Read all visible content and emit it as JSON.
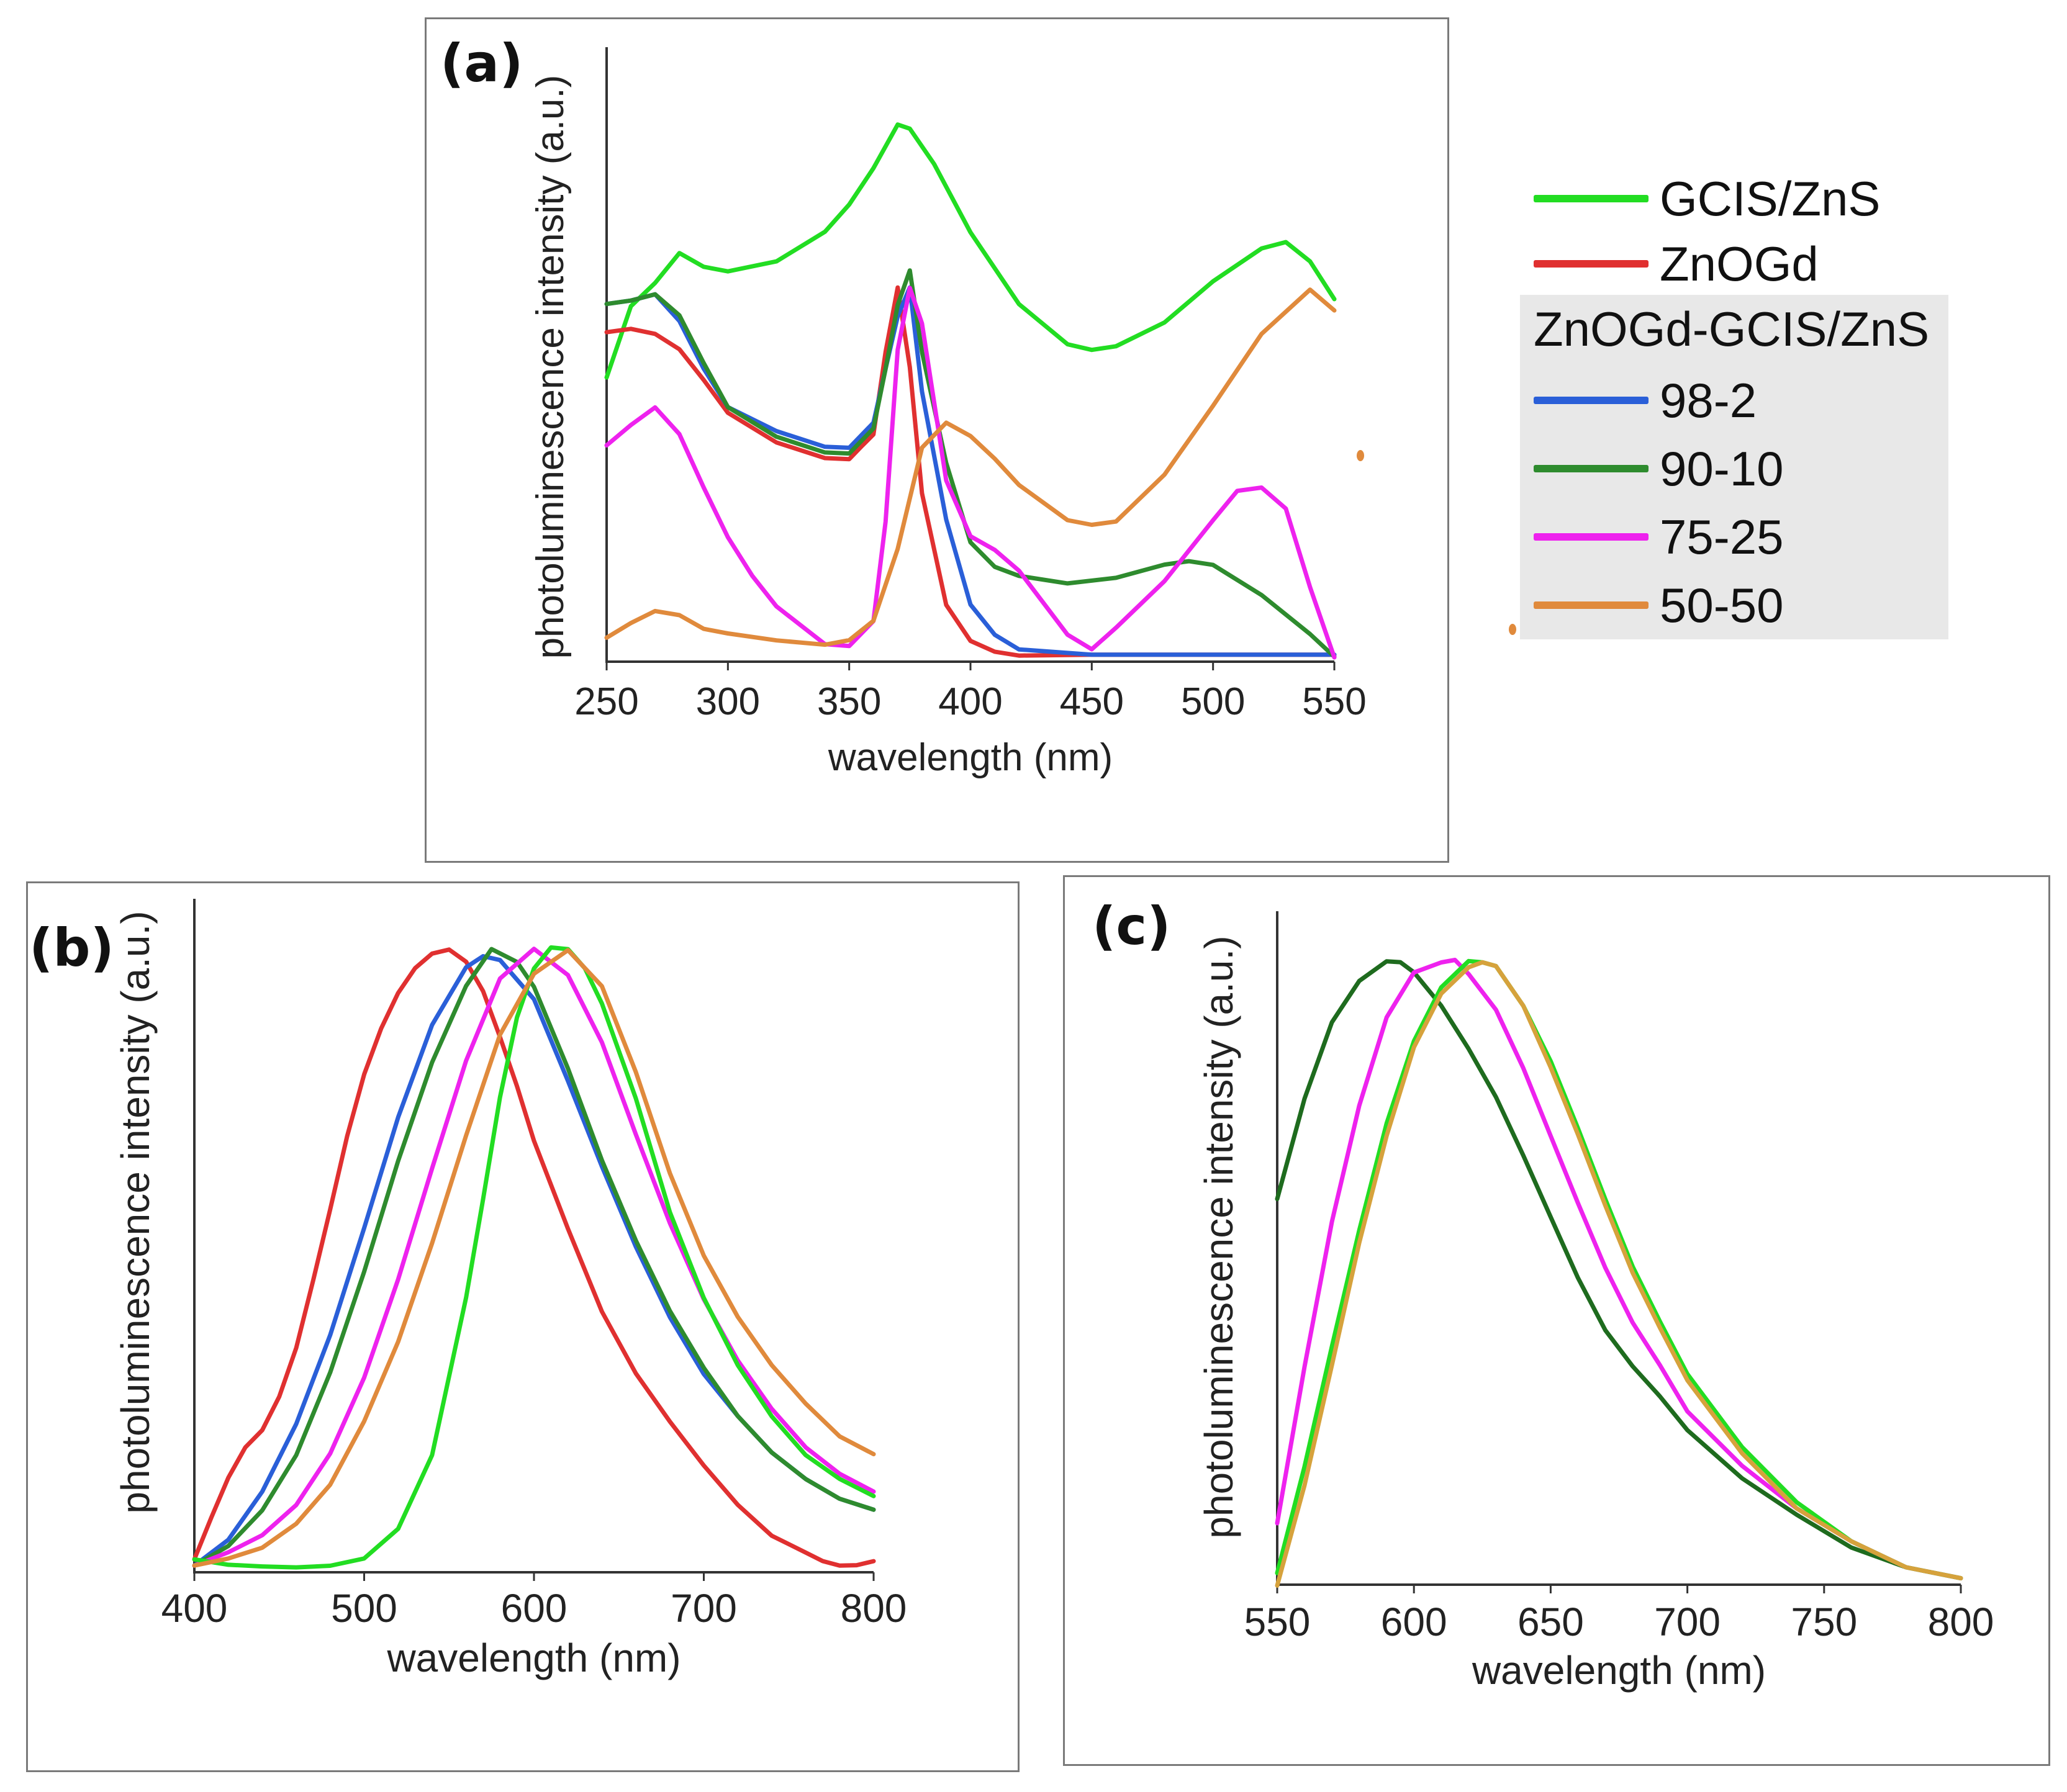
{
  "colors": {
    "gcis_zns": "#22dd22",
    "znogd": "#e03030",
    "s98_2": "#2a5fd8",
    "s90_10": "#2e8b2e",
    "s75_25": "#ee22ee",
    "s50_50": "#e08a3c",
    "axis": "#333333"
  },
  "legend": {
    "items": [
      {
        "label": "GCIS/ZnS",
        "color": "#22dd22"
      },
      {
        "label": "ZnOGd",
        "color": "#e03030"
      }
    ],
    "group_title": "ZnOGd-GCIS/ZnS",
    "group_items": [
      {
        "label": "98-2",
        "color": "#2a5fd8"
      },
      {
        "label": "90-10",
        "color": "#2e8b2e"
      },
      {
        "label": "75-25",
        "color": "#ee22ee"
      },
      {
        "label": "50-50",
        "color": "#e08a3c"
      }
    ]
  },
  "chart_data": [
    {
      "panel_label": "(a)",
      "type": "line",
      "xlabel": "wavelength (nm)",
      "ylabel": "photoluminescence intensity  (a.u.)",
      "xlim": [
        250,
        550
      ],
      "ylim": [
        0,
        1
      ],
      "xticks": [
        250,
        300,
        350,
        400,
        450,
        500,
        550
      ],
      "series": [
        {
          "name": "GCIS/ZnS",
          "color": "#22dd22",
          "x": [
            250,
            260,
            270,
            280,
            290,
            300,
            320,
            340,
            350,
            360,
            370,
            375,
            385,
            400,
            420,
            440,
            450,
            460,
            480,
            500,
            520,
            530,
            540,
            550
          ],
          "y": [
            0.5,
            0.63,
            0.67,
            0.72,
            0.7,
            0.69,
            0.71,
            0.76,
            0.81,
            0.87,
            0.95,
            0.94,
            0.88,
            0.76,
            0.63,
            0.56,
            0.55,
            0.56,
            0.6,
            0.67,
            0.73,
            0.74,
            0.71,
            0.64
          ]
        },
        {
          "name": "ZnOGd",
          "color": "#e03030",
          "x": [
            250,
            260,
            270,
            280,
            290,
            300,
            320,
            340,
            350,
            355,
            360,
            365,
            370,
            375,
            380,
            390,
            400,
            410,
            420,
            450,
            500,
            550
          ],
          "y": [
            0.58,
            0.59,
            0.58,
            0.55,
            0.5,
            0.44,
            0.39,
            0.36,
            0.36,
            0.38,
            0.4,
            0.55,
            0.66,
            0.52,
            0.3,
            0.1,
            0.035,
            0.02,
            0.01,
            0.01,
            0.01,
            0.01
          ]
        },
        {
          "name": "98-2",
          "color": "#2a5fd8",
          "x": [
            250,
            260,
            270,
            280,
            290,
            300,
            320,
            340,
            350,
            360,
            365,
            370,
            375,
            380,
            390,
            400,
            410,
            420,
            450,
            500,
            550
          ],
          "y": [
            0.63,
            0.64,
            0.65,
            0.6,
            0.52,
            0.45,
            0.41,
            0.38,
            0.38,
            0.42,
            0.52,
            0.61,
            0.66,
            0.48,
            0.25,
            0.1,
            0.05,
            0.02,
            0.01,
            0.01,
            0.01
          ]
        },
        {
          "name": "90-10",
          "color": "#2e8b2e",
          "x": [
            250,
            260,
            270,
            280,
            290,
            300,
            320,
            340,
            350,
            360,
            365,
            370,
            375,
            380,
            390,
            400,
            410,
            420,
            440,
            460,
            480,
            490,
            500,
            520,
            540,
            550
          ],
          "y": [
            0.63,
            0.64,
            0.65,
            0.61,
            0.53,
            0.45,
            0.4,
            0.37,
            0.37,
            0.41,
            0.52,
            0.63,
            0.69,
            0.55,
            0.35,
            0.21,
            0.17,
            0.15,
            0.14,
            0.15,
            0.17,
            0.18,
            0.17,
            0.12,
            0.05,
            0.01
          ]
        },
        {
          "name": "75-25",
          "color": "#ee22ee",
          "x": [
            250,
            260,
            270,
            280,
            290,
            300,
            310,
            320,
            340,
            350,
            360,
            365,
            370,
            375,
            380,
            390,
            400,
            410,
            420,
            440,
            450,
            460,
            480,
            500,
            510,
            520,
            530,
            540,
            550
          ],
          "y": [
            0.38,
            0.42,
            0.45,
            0.4,
            0.31,
            0.22,
            0.15,
            0.1,
            0.03,
            0.03,
            0.07,
            0.25,
            0.55,
            0.66,
            0.6,
            0.32,
            0.22,
            0.2,
            0.16,
            0.05,
            0.02,
            0.06,
            0.14,
            0.25,
            0.3,
            0.31,
            0.27,
            0.13,
            0.01
          ]
        },
        {
          "name": "50-50",
          "color": "#e08a3c",
          "x": [
            250,
            260,
            270,
            280,
            290,
            300,
            320,
            340,
            350,
            360,
            370,
            380,
            390,
            400,
            410,
            420,
            440,
            450,
            460,
            480,
            500,
            520,
            540,
            550
          ],
          "y": [
            0.04,
            0.07,
            0.09,
            0.08,
            0.06,
            0.05,
            0.04,
            0.03,
            0.04,
            0.07,
            0.2,
            0.38,
            0.42,
            0.4,
            0.36,
            0.31,
            0.25,
            0.24,
            0.25,
            0.33,
            0.45,
            0.58,
            0.66,
            0.62
          ]
        }
      ]
    },
    {
      "panel_label": "(b)",
      "type": "line",
      "xlabel": "wavelength (nm)",
      "ylabel": "photoluminescence intensity  (a.u.)",
      "xlim": [
        400,
        800
      ],
      "ylim": [
        0,
        1
      ],
      "xticks": [
        400,
        500,
        600,
        700,
        800
      ],
      "series": [
        {
          "name": "ZnOGd",
          "color": "#e03030",
          "x": [
            400,
            410,
            420,
            430,
            440,
            450,
            460,
            470,
            480,
            490,
            500,
            510,
            520,
            530,
            540,
            550,
            560,
            570,
            580,
            590,
            600,
            620,
            640,
            660,
            680,
            700,
            720,
            740,
            760,
            770,
            780,
            790,
            800
          ],
          "y": [
            0.02,
            0.09,
            0.15,
            0.2,
            0.23,
            0.28,
            0.36,
            0.47,
            0.58,
            0.7,
            0.8,
            0.87,
            0.93,
            0.97,
            0.99,
            1.0,
            0.98,
            0.93,
            0.86,
            0.78,
            0.69,
            0.55,
            0.42,
            0.32,
            0.24,
            0.17,
            0.11,
            0.06,
            0.03,
            0.02,
            0.01,
            0.01,
            0.02
          ]
        },
        {
          "name": "98-2",
          "color": "#2a5fd8",
          "x": [
            400,
            420,
            440,
            460,
            480,
            500,
            520,
            540,
            560,
            570,
            580,
            600,
            620,
            640,
            660,
            680,
            700,
            720,
            740,
            760,
            780,
            800
          ],
          "y": [
            0.01,
            0.05,
            0.13,
            0.24,
            0.38,
            0.55,
            0.73,
            0.88,
            0.97,
            0.99,
            0.98,
            0.92,
            0.79,
            0.65,
            0.52,
            0.41,
            0.32,
            0.25,
            0.19,
            0.15,
            0.12,
            0.1
          ]
        },
        {
          "name": "90-10",
          "color": "#2e8b2e",
          "x": [
            400,
            420,
            440,
            460,
            480,
            500,
            520,
            540,
            560,
            575,
            590,
            600,
            620,
            640,
            660,
            680,
            700,
            720,
            740,
            760,
            780,
            800
          ],
          "y": [
            0.01,
            0.04,
            0.1,
            0.19,
            0.32,
            0.48,
            0.66,
            0.82,
            0.94,
            1.0,
            0.98,
            0.94,
            0.81,
            0.66,
            0.53,
            0.42,
            0.33,
            0.25,
            0.19,
            0.15,
            0.12,
            0.1
          ]
        },
        {
          "name": "75-25",
          "color": "#ee22ee",
          "x": [
            400,
            420,
            440,
            460,
            480,
            500,
            520,
            540,
            560,
            580,
            600,
            620,
            640,
            660,
            680,
            700,
            720,
            740,
            760,
            780,
            800
          ],
          "y": [
            0.01,
            0.03,
            0.06,
            0.11,
            0.19,
            0.31,
            0.47,
            0.65,
            0.82,
            0.95,
            1.0,
            0.96,
            0.85,
            0.7,
            0.56,
            0.44,
            0.34,
            0.26,
            0.2,
            0.16,
            0.13
          ]
        },
        {
          "name": "GCIS/ZnS",
          "color": "#22dd22",
          "x": [
            400,
            420,
            440,
            460,
            480,
            500,
            520,
            540,
            560,
            570,
            580,
            590,
            600,
            610,
            620,
            630,
            640,
            660,
            680,
            700,
            720,
            740,
            760,
            780,
            800
          ],
          "y": [
            0.02,
            0.01,
            0.01,
            0.01,
            0.01,
            0.02,
            0.07,
            0.19,
            0.44,
            0.6,
            0.76,
            0.89,
            0.97,
            1.0,
            1.0,
            0.97,
            0.91,
            0.76,
            0.58,
            0.44,
            0.33,
            0.25,
            0.19,
            0.15,
            0.12
          ]
        },
        {
          "name": "50-50",
          "color": "#e08a3c",
          "x": [
            400,
            420,
            440,
            460,
            480,
            500,
            520,
            540,
            560,
            580,
            600,
            620,
            640,
            660,
            680,
            700,
            720,
            740,
            760,
            780,
            800
          ],
          "y": [
            0.01,
            0.02,
            0.04,
            0.08,
            0.14,
            0.24,
            0.37,
            0.53,
            0.7,
            0.86,
            0.96,
            1.0,
            0.94,
            0.8,
            0.64,
            0.51,
            0.41,
            0.33,
            0.27,
            0.22,
            0.19
          ]
        }
      ]
    },
    {
      "panel_label": "(c)",
      "type": "line",
      "xlabel": "wavelength (nm)",
      "ylabel": "photoluminescence intensity  (a.u.)",
      "xlim": [
        550,
        800
      ],
      "ylim": [
        0,
        1
      ],
      "xticks": [
        550,
        600,
        650,
        700,
        750,
        800
      ],
      "series": [
        {
          "name": "90-10",
          "color": "#1e6b1e",
          "x": [
            550,
            560,
            570,
            580,
            590,
            595,
            600,
            610,
            620,
            630,
            640,
            650,
            660,
            670,
            680,
            690,
            700,
            720,
            740,
            760,
            780,
            800
          ],
          "y": [
            0.62,
            0.78,
            0.9,
            0.97,
            1.0,
            1.0,
            0.98,
            0.93,
            0.86,
            0.78,
            0.69,
            0.59,
            0.49,
            0.41,
            0.35,
            0.3,
            0.25,
            0.17,
            0.11,
            0.06,
            0.03,
            0.01
          ]
        },
        {
          "name": "75-25",
          "color": "#ee22ee",
          "x": [
            550,
            560,
            570,
            580,
            590,
            600,
            610,
            615,
            620,
            630,
            640,
            650,
            660,
            670,
            680,
            690,
            700,
            720,
            740,
            760,
            780,
            800
          ],
          "y": [
            0.1,
            0.35,
            0.58,
            0.77,
            0.91,
            0.98,
            1.0,
            1.0,
            0.98,
            0.92,
            0.83,
            0.72,
            0.61,
            0.51,
            0.42,
            0.35,
            0.28,
            0.19,
            0.12,
            0.07,
            0.03,
            0.01
          ]
        },
        {
          "name": "GCIS/ZnS",
          "color": "#22dd22",
          "x": [
            550,
            560,
            570,
            580,
            590,
            600,
            610,
            620,
            625,
            630,
            640,
            650,
            660,
            670,
            680,
            690,
            700,
            720,
            740,
            760,
            780,
            800
          ],
          "y": [
            0.02,
            0.19,
            0.38,
            0.57,
            0.74,
            0.87,
            0.96,
            1.0,
            1.0,
            0.99,
            0.93,
            0.84,
            0.73,
            0.62,
            0.51,
            0.42,
            0.34,
            0.22,
            0.13,
            0.07,
            0.03,
            0.01
          ]
        },
        {
          "name": "50-50",
          "color": "#d6a23c",
          "x": [
            550,
            560,
            570,
            580,
            590,
            600,
            610,
            620,
            625,
            630,
            640,
            650,
            660,
            670,
            680,
            690,
            700,
            720,
            740,
            760,
            780,
            800
          ],
          "y": [
            0.0,
            0.16,
            0.35,
            0.55,
            0.72,
            0.86,
            0.95,
            0.99,
            1.0,
            0.99,
            0.93,
            0.83,
            0.72,
            0.61,
            0.5,
            0.41,
            0.33,
            0.21,
            0.12,
            0.07,
            0.03,
            0.01
          ]
        }
      ]
    }
  ]
}
